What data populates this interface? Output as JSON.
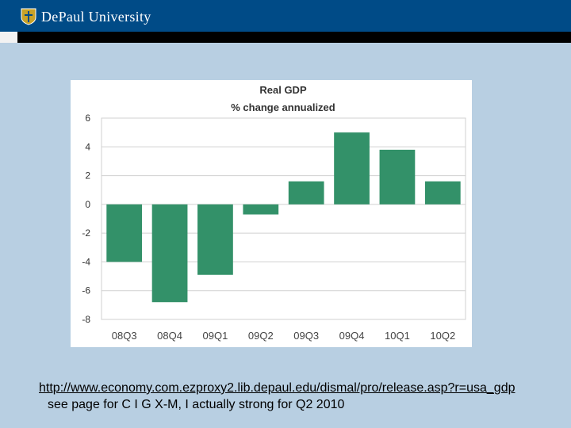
{
  "header": {
    "logo_text": "DePaul University",
    "colors": {
      "band": "#004b87",
      "stripe": "#000000"
    }
  },
  "chart_data": {
    "type": "bar",
    "title": "Real GDP",
    "subtitle": "% change annualized",
    "categories": [
      "08Q3",
      "08Q4",
      "09Q1",
      "09Q2",
      "09Q3",
      "09Q4",
      "10Q1",
      "10Q2"
    ],
    "values": [
      -4.0,
      -6.8,
      -4.9,
      -0.7,
      1.6,
      5.0,
      3.8,
      1.6
    ],
    "yticks": [
      "6",
      "4",
      "2",
      "0",
      "-2",
      "-4",
      "-6",
      "-8"
    ],
    "ylim": [
      -8,
      6
    ],
    "xlabel": "",
    "ylabel": "",
    "grid": true,
    "bar_color": "#339169"
  },
  "footer": {
    "link": "http://www.economy.com.ezproxy2.lib.depaul.edu/dismal/pro/release.asp?r=usa_gdp",
    "note": "see page for C I G X-M, I actually strong for Q2 2010"
  }
}
